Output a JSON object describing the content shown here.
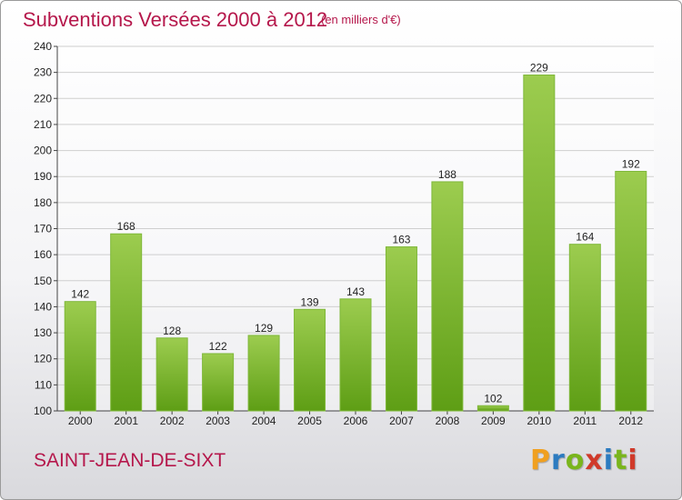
{
  "chart_data": {
    "type": "bar",
    "title": "Subventions Versées 2000 à 2012",
    "subtitle": "(en milliers d'€)",
    "categories": [
      "2000",
      "2001",
      "2002",
      "2003",
      "2004",
      "2005",
      "2006",
      "2007",
      "2008",
      "2009",
      "2010",
      "2011",
      "2012"
    ],
    "values": [
      142,
      168,
      128,
      122,
      129,
      139,
      143,
      163,
      188,
      102,
      229,
      164,
      192
    ],
    "ylim": [
      100,
      240
    ],
    "yticks": [
      100,
      110,
      120,
      130,
      140,
      150,
      160,
      170,
      180,
      190,
      200,
      210,
      220,
      230,
      240
    ],
    "grid": true,
    "bar_color_top": "#9ccc4f",
    "bar_color_bottom": "#5e9e15"
  },
  "footer": {
    "commune": "SAINT-JEAN-DE-SIXT",
    "logo": {
      "letters": [
        "P",
        "r",
        "o",
        "x",
        "i",
        "t",
        "i"
      ],
      "colors": [
        "#f0a020",
        "#2c7bc0",
        "#7ab51d",
        "#d03a2a",
        "#2c7bc0",
        "#7ab51d",
        "#d03a2a"
      ]
    }
  }
}
